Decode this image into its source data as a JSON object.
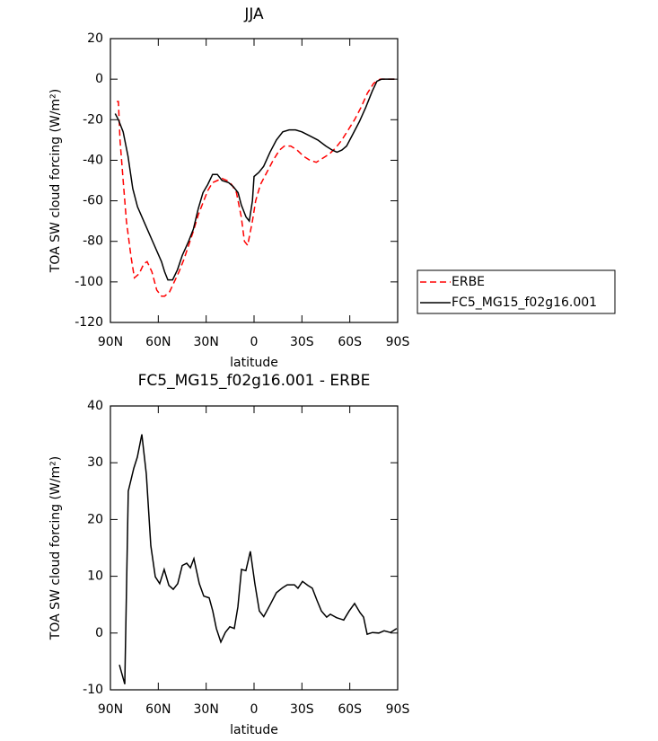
{
  "chart_data": [
    {
      "type": "line",
      "title": "JJA",
      "xlabel": "latitude",
      "ylabel": "TOA SW cloud forcing (W/m²)",
      "xlim": [
        90,
        -90
      ],
      "ylim": [
        -120,
        20
      ],
      "xticks": [
        {
          "value": 90,
          "label": "90N"
        },
        {
          "value": 60,
          "label": "60N"
        },
        {
          "value": 30,
          "label": "30N"
        },
        0,
        {
          "value": -30,
          "label": "30S"
        },
        {
          "value": -60,
          "label": "60S"
        },
        {
          "value": -90,
          "label": "90S"
        }
      ],
      "yticks": [
        -120,
        -100,
        -80,
        -60,
        -40,
        -20,
        0,
        20
      ],
      "legend": "right",
      "series": [
        {
          "name": "ERBE",
          "color": "#ff0000",
          "style": "dashed",
          "x": [
            86,
            85,
            84,
            82,
            80,
            77,
            75,
            72,
            69,
            67,
            64,
            61,
            58,
            56,
            53,
            50,
            47,
            44,
            41,
            38,
            35,
            32,
            29,
            26,
            23,
            20,
            17,
            14,
            11,
            8,
            6,
            4,
            1,
            -1,
            -4,
            -8,
            -12,
            -16,
            -19,
            -23,
            -27,
            -31,
            -35,
            -39,
            -43,
            -47,
            -51,
            -55,
            -59,
            -63,
            -67,
            -71,
            -75,
            -79,
            -85,
            -88
          ],
          "values": [
            -11,
            -11,
            -30,
            -50,
            -70,
            -88,
            -98,
            -96,
            -91,
            -90,
            -95,
            -104,
            -107,
            -107,
            -105,
            -100,
            -95,
            -89,
            -82,
            -75,
            -67,
            -61,
            -55,
            -51,
            -50,
            -49,
            -50,
            -52,
            -56,
            -68,
            -80,
            -82,
            -70,
            -60,
            -52,
            -46,
            -40,
            -35,
            -33,
            -33,
            -35,
            -38,
            -40,
            -41,
            -39,
            -37,
            -34,
            -30,
            -25,
            -20,
            -14,
            -7,
            -2,
            0,
            0,
            0
          ]
        },
        {
          "name": "FC5_MG15_f02g16.001",
          "color": "#000000",
          "style": "solid",
          "x": [
            87,
            85,
            82,
            79,
            76,
            73,
            68,
            63,
            58,
            56,
            54,
            51,
            48,
            45,
            41,
            38,
            35,
            32,
            29,
            26,
            23,
            20,
            16,
            13,
            10,
            8,
            5,
            3,
            1,
            0,
            -3,
            -6,
            -10,
            -14,
            -18,
            -22,
            -26,
            -30,
            -35,
            -40,
            -45,
            -49,
            -52,
            -55,
            -58,
            -62,
            -66,
            -70,
            -74,
            -77,
            -80,
            -85,
            -88
          ],
          "values": [
            -17,
            -20,
            -26,
            -38,
            -54,
            -63,
            -72,
            -81,
            -90,
            -95,
            -99,
            -99,
            -94,
            -87,
            -80,
            -74,
            -64,
            -56,
            -52,
            -47,
            -47,
            -50,
            -51,
            -53,
            -56,
            -62,
            -68,
            -70,
            -60,
            -48,
            -46,
            -43,
            -36,
            -30,
            -26,
            -25,
            -25,
            -26,
            -28,
            -30,
            -33,
            -35,
            -36,
            -35,
            -33,
            -27,
            -21,
            -14,
            -6,
            -1,
            0,
            0,
            0
          ]
        }
      ]
    },
    {
      "type": "line",
      "title": "FC5_MG15_f02g16.001 - ERBE",
      "xlabel": "latitude",
      "ylabel": "TOA SW cloud forcing (W/m²)",
      "xlim": [
        90,
        -90
      ],
      "ylim": [
        -10,
        40
      ],
      "xticks": [
        {
          "value": 90,
          "label": "90N"
        },
        {
          "value": 60,
          "label": "60N"
        },
        {
          "value": 30,
          "label": "30N"
        },
        0,
        {
          "value": -30,
          "label": "30S"
        },
        {
          "value": -60,
          "label": "60S"
        },
        {
          "value": -90,
          "label": "90S"
        }
      ],
      "yticks": [
        -10,
        0,
        10,
        20,
        30,
        40
      ],
      "series": [
        {
          "color": "#000000",
          "style": "solid",
          "x": [
            84.4,
            81.0,
            78.8,
            75.4,
            73.1,
            70.3,
            67.5,
            64.7,
            61.9,
            59.1,
            56.3,
            53.4,
            50.6,
            47.8,
            45.0,
            42.2,
            39.9,
            37.7,
            34.3,
            31.5,
            28.1,
            25.9,
            23.6,
            20.8,
            18.0,
            15.2,
            12.4,
            10.1,
            7.9,
            5.1,
            2.3,
            -0.5,
            -3.3,
            -6.1,
            -10.1,
            -14.0,
            -18.0,
            -20.8,
            -25.3,
            -27.5,
            -30.4,
            -33.7,
            -36.5,
            -39.4,
            -42.2,
            -45.5,
            -47.8,
            -51.7,
            -56.2,
            -59.6,
            -63.0,
            -66.4,
            -68.6,
            -70.9,
            -74.2,
            -78.2,
            -81.5,
            -85.5,
            -89.4
          ],
          "values": [
            -5.6,
            -9,
            25,
            29,
            31,
            35,
            28,
            15.4,
            9.9,
            8.7,
            11.2,
            8.4,
            7.7,
            8.7,
            11.9,
            12.3,
            11.5,
            13.1,
            8.7,
            6.5,
            6.2,
            3.9,
            0.8,
            -1.6,
            0.1,
            1.1,
            0.8,
            4.6,
            11.2,
            11,
            14.4,
            8.7,
            3.9,
            2.9,
            5,
            7.1,
            8,
            8.5,
            8.5,
            7.9,
            9.1,
            8.4,
            7.9,
            5.8,
            3.9,
            2.8,
            3.3,
            2.7,
            2.3,
            3.9,
            5.2,
            3.6,
            2.8,
            -0.2,
            0.1,
            0,
            0.4,
            0.1,
            0.8
          ]
        }
      ]
    }
  ]
}
